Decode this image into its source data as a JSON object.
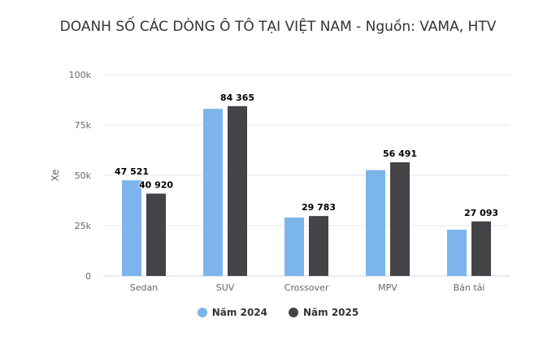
{
  "chart_data": {
    "type": "bar",
    "title": "DOANH SỐ CÁC DÒNG Ô TÔ TẠI VIỆT NAM - Nguồn: VAMA, HTV",
    "ylabel": "Xe",
    "xlabel": "",
    "ylim": [
      0,
      100000
    ],
    "yticks": [
      0,
      25000,
      50000,
      75000,
      100000
    ],
    "ytick_labels": [
      "0",
      "25k",
      "50k",
      "75k",
      "100k"
    ],
    "grid": true,
    "legend_position": "bottom",
    "categories": [
      "Sedan",
      "SUV",
      "Crossover",
      "MPV",
      "Bán tải"
    ],
    "series": [
      {
        "name": "Năm 2024",
        "color": "#7cb5ec",
        "values": [
          47521,
          83000,
          29000,
          52600,
          23000
        ],
        "labels": [
          "47 521",
          "",
          "",
          "",
          ""
        ]
      },
      {
        "name": "Năm 2025",
        "color": "#434348",
        "values": [
          40920,
          84365,
          29783,
          56491,
          27093
        ],
        "labels": [
          "40 920",
          "84 365",
          "29 783",
          "56 491",
          "27 093"
        ]
      }
    ]
  }
}
